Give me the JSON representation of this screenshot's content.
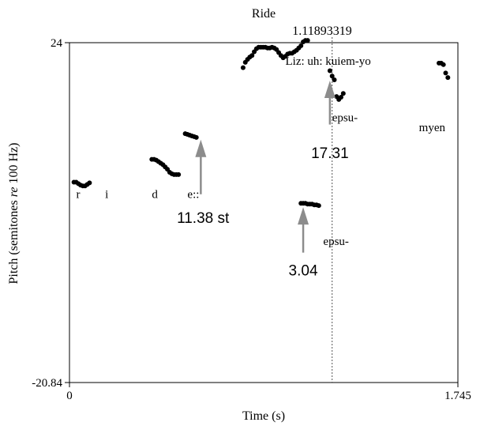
{
  "chart_data": {
    "type": "scatter",
    "title": "Ride",
    "xlabel": "Time (s)",
    "ylabel_parts": [
      "Pitch (semitones ",
      "re",
      " 100 Hz)"
    ],
    "xlim": [
      0,
      1.745
    ],
    "ylim": [
      -20.84,
      24
    ],
    "x_tick_labels": [
      "0",
      "1.745"
    ],
    "y_tick_labels": [
      "24",
      "-20.84"
    ],
    "cursor": {
      "x": 1.18,
      "label": "1.11893319"
    },
    "series": [
      {
        "color": "#000000",
        "points": [
          [
            0.02,
            5.6
          ],
          [
            0.03,
            5.6
          ],
          [
            0.04,
            5.4
          ],
          [
            0.05,
            5.2
          ],
          [
            0.06,
            5.1
          ],
          [
            0.07,
            5.1
          ],
          [
            0.08,
            5.3
          ],
          [
            0.09,
            5.5
          ],
          [
            0.37,
            8.6
          ],
          [
            0.38,
            8.6
          ],
          [
            0.39,
            8.5
          ],
          [
            0.4,
            8.3
          ],
          [
            0.41,
            8.1
          ],
          [
            0.42,
            7.9
          ],
          [
            0.43,
            7.6
          ],
          [
            0.44,
            7.3
          ],
          [
            0.45,
            6.9
          ],
          [
            0.46,
            6.7
          ],
          [
            0.47,
            6.6
          ],
          [
            0.48,
            6.6
          ],
          [
            0.49,
            6.6
          ],
          [
            0.52,
            12.0
          ],
          [
            0.53,
            11.9
          ],
          [
            0.54,
            11.8
          ],
          [
            0.55,
            11.7
          ],
          [
            0.56,
            11.6
          ],
          [
            0.57,
            11.5
          ],
          [
            0.78,
            20.7
          ],
          [
            0.79,
            21.4
          ],
          [
            0.8,
            21.8
          ],
          [
            0.81,
            22.1
          ],
          [
            0.82,
            22.3
          ],
          [
            0.83,
            22.8
          ],
          [
            0.84,
            23.2
          ],
          [
            0.85,
            23.4
          ],
          [
            0.86,
            23.4
          ],
          [
            0.87,
            23.4
          ],
          [
            0.88,
            23.4
          ],
          [
            0.89,
            23.3
          ],
          [
            0.9,
            23.3
          ],
          [
            0.91,
            23.4
          ],
          [
            0.92,
            23.3
          ],
          [
            0.93,
            23.1
          ],
          [
            0.94,
            22.7
          ],
          [
            0.95,
            22.3
          ],
          [
            0.96,
            22.0
          ],
          [
            0.97,
            22.2
          ],
          [
            0.98,
            22.5
          ],
          [
            0.99,
            22.6
          ],
          [
            1.0,
            22.6
          ],
          [
            1.01,
            22.8
          ],
          [
            1.02,
            23.0
          ],
          [
            1.03,
            23.3
          ],
          [
            1.04,
            23.6
          ],
          [
            1.05,
            24.1
          ],
          [
            1.06,
            24.3
          ],
          [
            1.07,
            24.3
          ],
          [
            1.04,
            2.8
          ],
          [
            1.05,
            2.8
          ],
          [
            1.06,
            2.8
          ],
          [
            1.07,
            2.7
          ],
          [
            1.08,
            2.7
          ],
          [
            1.09,
            2.7
          ],
          [
            1.1,
            2.6
          ],
          [
            1.11,
            2.6
          ],
          [
            1.12,
            2.5
          ],
          [
            1.17,
            20.3
          ],
          [
            1.18,
            19.6
          ],
          [
            1.19,
            19.1
          ],
          [
            1.2,
            16.9
          ],
          [
            1.21,
            16.5
          ],
          [
            1.22,
            16.8
          ],
          [
            1.23,
            17.3
          ],
          [
            1.66,
            21.3
          ],
          [
            1.67,
            21.3
          ],
          [
            1.68,
            21.1
          ],
          [
            1.69,
            20.0
          ],
          [
            1.7,
            19.4
          ]
        ]
      }
    ],
    "segment_labels": [
      {
        "text": "r",
        "x": 0.03,
        "y": 3.5
      },
      {
        "text": "i",
        "x": 0.16,
        "y": 3.5
      },
      {
        "text": "d",
        "x": 0.37,
        "y": 3.5
      },
      {
        "text": "e::",
        "x": 0.53,
        "y": 3.5
      },
      {
        "text": "Liz: uh: kuiem-yo",
        "x": 0.97,
        "y": 21.1
      },
      {
        "text": "epsu-",
        "x": 1.18,
        "y": 13.6
      },
      {
        "text": "myen",
        "x": 1.57,
        "y": 12.3
      },
      {
        "text": "epsu-",
        "x": 1.14,
        "y": -2.7
      }
    ],
    "annotations": [
      {
        "text": "11.38 st",
        "arrow_x": 0.59,
        "arrow_tip_y": 11.2,
        "arrow_tail_y": 4.0,
        "text_x": 0.6,
        "text_y": 0.2
      },
      {
        "text": "17.31",
        "arrow_x": 1.17,
        "arrow_tip_y": 19.0,
        "arrow_tail_y": 13.2,
        "text_x": 1.17,
        "text_y": 8.8
      },
      {
        "text": "3.04",
        "arrow_x": 1.05,
        "arrow_tip_y": 2.3,
        "arrow_tail_y": -3.7,
        "text_x": 1.05,
        "text_y": -6.7
      }
    ]
  }
}
